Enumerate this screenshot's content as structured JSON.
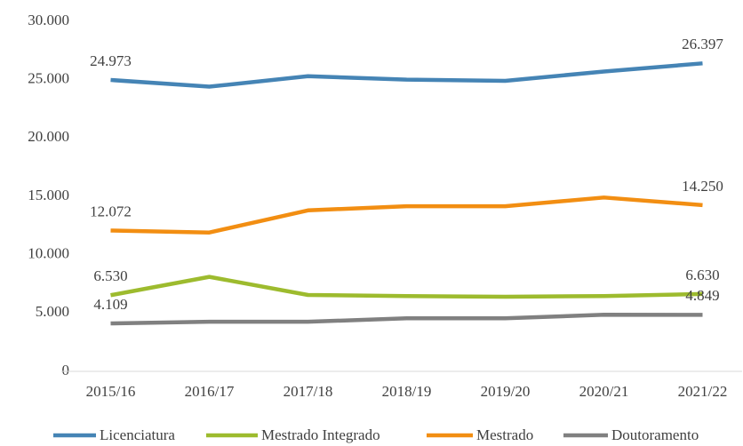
{
  "chart_data": {
    "type": "line",
    "categories": [
      "2015/16",
      "2016/17",
      "2017/18",
      "2018/19",
      "2019/20",
      "2020/21",
      "2021/22"
    ],
    "series": [
      {
        "name": "Licenciatura",
        "color": "#4584b5",
        "values": [
          24973,
          24400,
          25300,
          25000,
          24900,
          25700,
          26397
        ],
        "value_labels": [
          "24.973",
          null,
          null,
          null,
          null,
          null,
          "26.397"
        ]
      },
      {
        "name": "Mestrado Integrado",
        "color": "#9dbb2e",
        "values": [
          6530,
          8100,
          6550,
          6450,
          6400,
          6450,
          6630
        ],
        "value_labels": [
          "6.530",
          null,
          null,
          null,
          null,
          null,
          "6.630"
        ]
      },
      {
        "name": "Mestrado",
        "color": "#f28e12",
        "values": [
          12072,
          11900,
          13800,
          14150,
          14150,
          14900,
          14250
        ],
        "value_labels": [
          "12.072",
          null,
          null,
          null,
          null,
          null,
          "14.250"
        ]
      },
      {
        "name": "Doutoramento",
        "color": "#808080",
        "values": [
          4109,
          4250,
          4250,
          4550,
          4550,
          4850,
          4849
        ],
        "value_labels": [
          "4.109",
          null,
          null,
          null,
          null,
          null,
          "4.849"
        ]
      }
    ],
    "ylim": [
      0,
      30000
    ],
    "yticks": [
      0,
      {
        "value": 5000,
        "label": "5.000"
      },
      {
        "value": 10000,
        "label": "10.000"
      },
      {
        "value": 15000,
        "label": "15.000"
      },
      {
        "value": 20000,
        "label": "20.000"
      },
      {
        "value": 25000,
        "label": "25.000"
      },
      {
        "value": 30000,
        "label": "30.000"
      }
    ],
    "grid": false,
    "legend": "bottom"
  }
}
